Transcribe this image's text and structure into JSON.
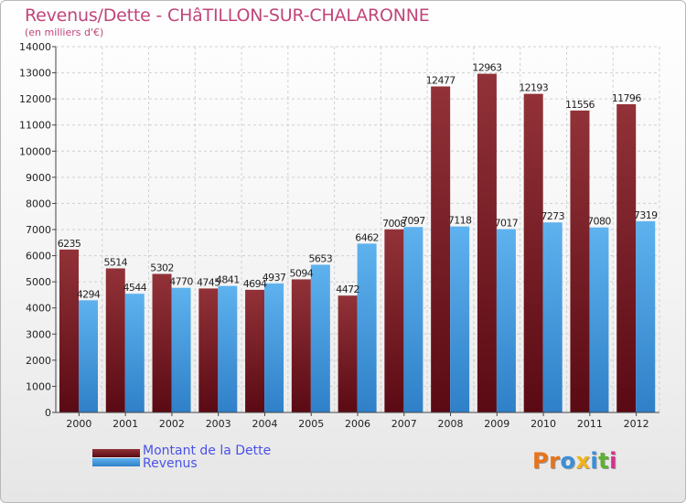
{
  "title": "Revenus/Dette - CHâTILLON-SUR-CHALARONNE",
  "subtitle": "(en milliers d'€)",
  "chart_data": {
    "type": "bar",
    "title": "Revenus/Dette - CHâTILLON-SUR-CHALARONNE",
    "ylabel": "(en milliers d'€)",
    "xlabel": "",
    "ylim": [
      0,
      14000
    ],
    "yticks": [
      0,
      1000,
      2000,
      3000,
      4000,
      5000,
      6000,
      7000,
      8000,
      9000,
      10000,
      11000,
      12000,
      13000,
      14000
    ],
    "grid": true,
    "legend_position": "bottom-left",
    "categories": [
      "2000",
      "2001",
      "2002",
      "2003",
      "2004",
      "2005",
      "2006",
      "2007",
      "2008",
      "2009",
      "2010",
      "2011",
      "2012"
    ],
    "series": [
      {
        "name": "Montant de la Dette",
        "color": "#7d1f2a",
        "values": [
          6235,
          5514,
          5302,
          4745,
          4694,
          5094,
          4472,
          7008,
          12477,
          12963,
          12193,
          11556,
          11796
        ]
      },
      {
        "name": "Revenus",
        "color": "#3a98dc",
        "values": [
          4294,
          4544,
          4770,
          4841,
          4937,
          5653,
          6462,
          7097,
          7118,
          7017,
          7273,
          7080,
          7319
        ]
      }
    ]
  },
  "legend": {
    "items": [
      {
        "label": "Montant de la Dette",
        "color": "#7d1f2a"
      },
      {
        "label": "Revenus",
        "color": "#3a98dc"
      }
    ]
  },
  "logo": {
    "letters": [
      "P",
      "r",
      "o",
      "x",
      "i",
      "t",
      "i"
    ],
    "colors": [
      "#e8731a",
      "#e8731a",
      "#3a8fd8",
      "#f0b21a",
      "#3a8fd8",
      "#60b030",
      "#d8308a"
    ]
  }
}
